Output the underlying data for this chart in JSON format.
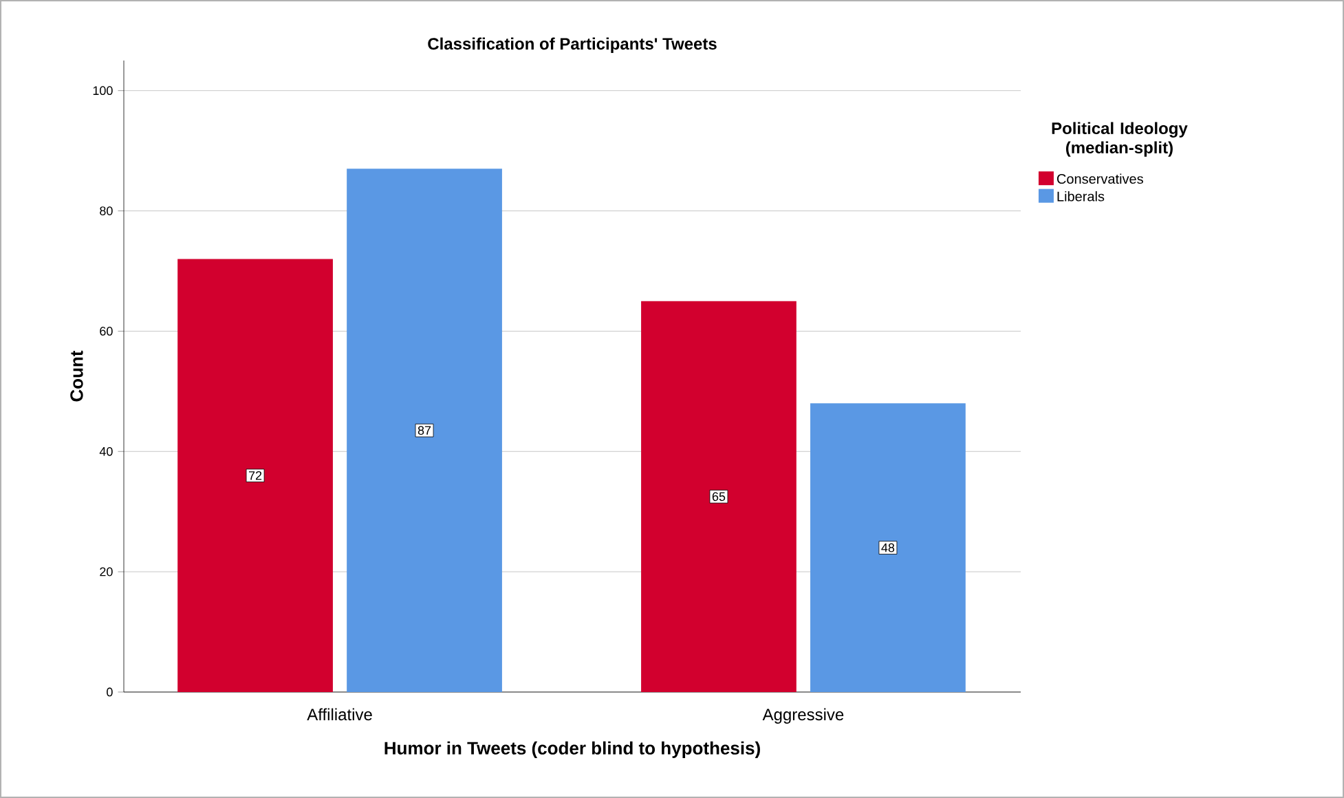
{
  "chart_data": {
    "type": "bar",
    "title": "Classification of Participants' Tweets",
    "xlabel": "Humor in Tweets (coder blind to hypothesis)",
    "ylabel": "Count",
    "legend_title": "Political Ideology (median-split)",
    "categories": [
      "Affiliative",
      "Aggressive"
    ],
    "series": [
      {
        "name": "Conservatives",
        "color": "#d2002e",
        "values": [
          72,
          65
        ]
      },
      {
        "name": "Liberals",
        "color": "#5a98e4",
        "values": [
          87,
          48
        ]
      }
    ],
    "ylim": [
      0,
      105
    ],
    "yticks": [
      0,
      20,
      40,
      60,
      80,
      100
    ],
    "grid": "y",
    "legend": "right",
    "data_labels": true
  }
}
